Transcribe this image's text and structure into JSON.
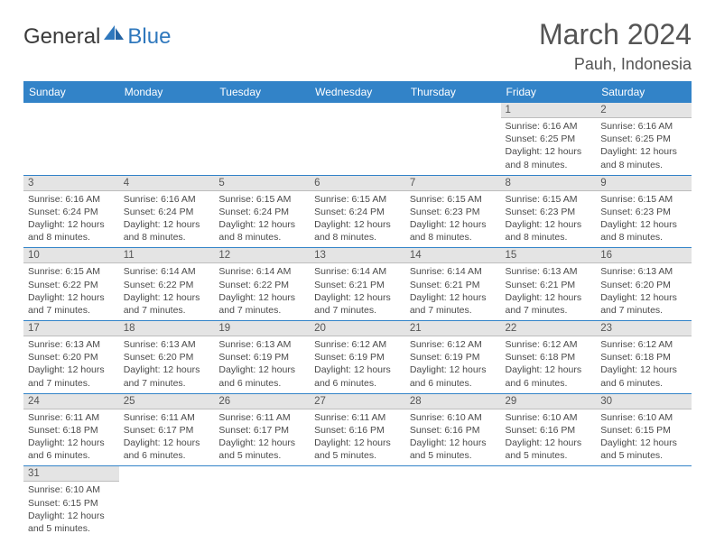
{
  "brand": {
    "general": "General",
    "blue": "Blue"
  },
  "title": "March 2024",
  "location": "Pauh, Indonesia",
  "colors": {
    "header_bg": "#3283c8",
    "header_text": "#ffffff",
    "daynum_bg": "#e4e4e4",
    "row_border": "#3283c8",
    "text": "#4a4a4a"
  },
  "weekdays": [
    "Sunday",
    "Monday",
    "Tuesday",
    "Wednesday",
    "Thursday",
    "Friday",
    "Saturday"
  ],
  "weeks": [
    [
      {
        "n": "",
        "sr": "",
        "ss": "",
        "dl": ""
      },
      {
        "n": "",
        "sr": "",
        "ss": "",
        "dl": ""
      },
      {
        "n": "",
        "sr": "",
        "ss": "",
        "dl": ""
      },
      {
        "n": "",
        "sr": "",
        "ss": "",
        "dl": ""
      },
      {
        "n": "",
        "sr": "",
        "ss": "",
        "dl": ""
      },
      {
        "n": "1",
        "sr": "Sunrise: 6:16 AM",
        "ss": "Sunset: 6:25 PM",
        "dl": "Daylight: 12 hours and 8 minutes."
      },
      {
        "n": "2",
        "sr": "Sunrise: 6:16 AM",
        "ss": "Sunset: 6:25 PM",
        "dl": "Daylight: 12 hours and 8 minutes."
      }
    ],
    [
      {
        "n": "3",
        "sr": "Sunrise: 6:16 AM",
        "ss": "Sunset: 6:24 PM",
        "dl": "Daylight: 12 hours and 8 minutes."
      },
      {
        "n": "4",
        "sr": "Sunrise: 6:16 AM",
        "ss": "Sunset: 6:24 PM",
        "dl": "Daylight: 12 hours and 8 minutes."
      },
      {
        "n": "5",
        "sr": "Sunrise: 6:15 AM",
        "ss": "Sunset: 6:24 PM",
        "dl": "Daylight: 12 hours and 8 minutes."
      },
      {
        "n": "6",
        "sr": "Sunrise: 6:15 AM",
        "ss": "Sunset: 6:24 PM",
        "dl": "Daylight: 12 hours and 8 minutes."
      },
      {
        "n": "7",
        "sr": "Sunrise: 6:15 AM",
        "ss": "Sunset: 6:23 PM",
        "dl": "Daylight: 12 hours and 8 minutes."
      },
      {
        "n": "8",
        "sr": "Sunrise: 6:15 AM",
        "ss": "Sunset: 6:23 PM",
        "dl": "Daylight: 12 hours and 8 minutes."
      },
      {
        "n": "9",
        "sr": "Sunrise: 6:15 AM",
        "ss": "Sunset: 6:23 PM",
        "dl": "Daylight: 12 hours and 8 minutes."
      }
    ],
    [
      {
        "n": "10",
        "sr": "Sunrise: 6:15 AM",
        "ss": "Sunset: 6:22 PM",
        "dl": "Daylight: 12 hours and 7 minutes."
      },
      {
        "n": "11",
        "sr": "Sunrise: 6:14 AM",
        "ss": "Sunset: 6:22 PM",
        "dl": "Daylight: 12 hours and 7 minutes."
      },
      {
        "n": "12",
        "sr": "Sunrise: 6:14 AM",
        "ss": "Sunset: 6:22 PM",
        "dl": "Daylight: 12 hours and 7 minutes."
      },
      {
        "n": "13",
        "sr": "Sunrise: 6:14 AM",
        "ss": "Sunset: 6:21 PM",
        "dl": "Daylight: 12 hours and 7 minutes."
      },
      {
        "n": "14",
        "sr": "Sunrise: 6:14 AM",
        "ss": "Sunset: 6:21 PM",
        "dl": "Daylight: 12 hours and 7 minutes."
      },
      {
        "n": "15",
        "sr": "Sunrise: 6:13 AM",
        "ss": "Sunset: 6:21 PM",
        "dl": "Daylight: 12 hours and 7 minutes."
      },
      {
        "n": "16",
        "sr": "Sunrise: 6:13 AM",
        "ss": "Sunset: 6:20 PM",
        "dl": "Daylight: 12 hours and 7 minutes."
      }
    ],
    [
      {
        "n": "17",
        "sr": "Sunrise: 6:13 AM",
        "ss": "Sunset: 6:20 PM",
        "dl": "Daylight: 12 hours and 7 minutes."
      },
      {
        "n": "18",
        "sr": "Sunrise: 6:13 AM",
        "ss": "Sunset: 6:20 PM",
        "dl": "Daylight: 12 hours and 7 minutes."
      },
      {
        "n": "19",
        "sr": "Sunrise: 6:13 AM",
        "ss": "Sunset: 6:19 PM",
        "dl": "Daylight: 12 hours and 6 minutes."
      },
      {
        "n": "20",
        "sr": "Sunrise: 6:12 AM",
        "ss": "Sunset: 6:19 PM",
        "dl": "Daylight: 12 hours and 6 minutes."
      },
      {
        "n": "21",
        "sr": "Sunrise: 6:12 AM",
        "ss": "Sunset: 6:19 PM",
        "dl": "Daylight: 12 hours and 6 minutes."
      },
      {
        "n": "22",
        "sr": "Sunrise: 6:12 AM",
        "ss": "Sunset: 6:18 PM",
        "dl": "Daylight: 12 hours and 6 minutes."
      },
      {
        "n": "23",
        "sr": "Sunrise: 6:12 AM",
        "ss": "Sunset: 6:18 PM",
        "dl": "Daylight: 12 hours and 6 minutes."
      }
    ],
    [
      {
        "n": "24",
        "sr": "Sunrise: 6:11 AM",
        "ss": "Sunset: 6:18 PM",
        "dl": "Daylight: 12 hours and 6 minutes."
      },
      {
        "n": "25",
        "sr": "Sunrise: 6:11 AM",
        "ss": "Sunset: 6:17 PM",
        "dl": "Daylight: 12 hours and 6 minutes."
      },
      {
        "n": "26",
        "sr": "Sunrise: 6:11 AM",
        "ss": "Sunset: 6:17 PM",
        "dl": "Daylight: 12 hours and 5 minutes."
      },
      {
        "n": "27",
        "sr": "Sunrise: 6:11 AM",
        "ss": "Sunset: 6:16 PM",
        "dl": "Daylight: 12 hours and 5 minutes."
      },
      {
        "n": "28",
        "sr": "Sunrise: 6:10 AM",
        "ss": "Sunset: 6:16 PM",
        "dl": "Daylight: 12 hours and 5 minutes."
      },
      {
        "n": "29",
        "sr": "Sunrise: 6:10 AM",
        "ss": "Sunset: 6:16 PM",
        "dl": "Daylight: 12 hours and 5 minutes."
      },
      {
        "n": "30",
        "sr": "Sunrise: 6:10 AM",
        "ss": "Sunset: 6:15 PM",
        "dl": "Daylight: 12 hours and 5 minutes."
      }
    ],
    [
      {
        "n": "31",
        "sr": "Sunrise: 6:10 AM",
        "ss": "Sunset: 6:15 PM",
        "dl": "Daylight: 12 hours and 5 minutes."
      },
      {
        "n": "",
        "sr": "",
        "ss": "",
        "dl": ""
      },
      {
        "n": "",
        "sr": "",
        "ss": "",
        "dl": ""
      },
      {
        "n": "",
        "sr": "",
        "ss": "",
        "dl": ""
      },
      {
        "n": "",
        "sr": "",
        "ss": "",
        "dl": ""
      },
      {
        "n": "",
        "sr": "",
        "ss": "",
        "dl": ""
      },
      {
        "n": "",
        "sr": "",
        "ss": "",
        "dl": ""
      }
    ]
  ]
}
